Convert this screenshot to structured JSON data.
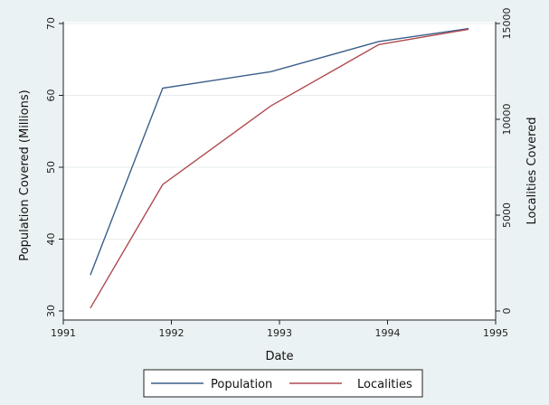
{
  "chart_data": {
    "type": "line",
    "xlabel": "Date",
    "ylabel_left": "Population Covered (Millions)",
    "ylabel_right": "Localities Covered",
    "xlim": [
      1991,
      1995
    ],
    "ylim_left": [
      30,
      70
    ],
    "ylim_right": [
      0,
      15000
    ],
    "x_ticks": [
      1991,
      1992,
      1993,
      1994,
      1995
    ],
    "y_left_ticks": [
      30,
      40,
      50,
      60,
      70
    ],
    "y_right_ticks": [
      0,
      5000,
      10000,
      15000
    ],
    "grid": true,
    "legend_position": "bottom",
    "series": [
      {
        "name": "Population",
        "axis": "left",
        "color": "#3a5f8a",
        "x": [
          1991.25,
          1991.92,
          1992.92,
          1993.92,
          1994.75
        ],
        "y": [
          35.0,
          61.0,
          63.3,
          67.5,
          69.3
        ]
      },
      {
        "name": "Localities",
        "axis": "right",
        "color": "#b04a50",
        "x": [
          1991.25,
          1991.92,
          1992.92,
          1993.92,
          1994.75
        ],
        "y": [
          150,
          6600,
          10700,
          13900,
          14700
        ]
      }
    ]
  }
}
